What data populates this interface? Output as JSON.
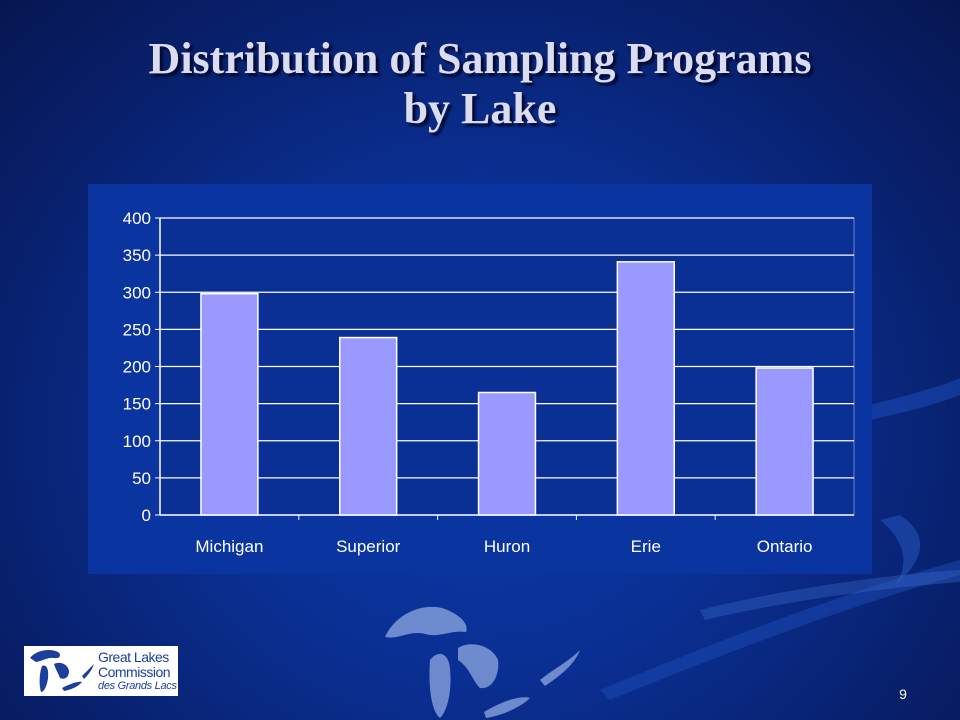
{
  "slide": {
    "title_line1": "Distribution of Sampling Programs",
    "title_line2": "by Lake",
    "page_number": "9"
  },
  "logo": {
    "line1": "Great Lakes",
    "line2": "Commission",
    "line3": "des Grands Lacs"
  },
  "colors": {
    "bar_fill": "#9999ff",
    "bar_stroke": "#ffffff",
    "plot_background": "#0a2f95",
    "gridline": "#ffffff",
    "axis_text": "#ffffff"
  },
  "chart_data": {
    "type": "bar",
    "title": "",
    "xlabel": "",
    "ylabel": "",
    "categories": [
      "Michigan",
      "Superior",
      "Huron",
      "Erie",
      "Ontario"
    ],
    "values": [
      298,
      239,
      165,
      341,
      198
    ],
    "ylim": [
      0,
      400
    ],
    "yticks": [
      0,
      50,
      100,
      150,
      200,
      250,
      300,
      350,
      400
    ],
    "grid": true,
    "legend": "none"
  }
}
